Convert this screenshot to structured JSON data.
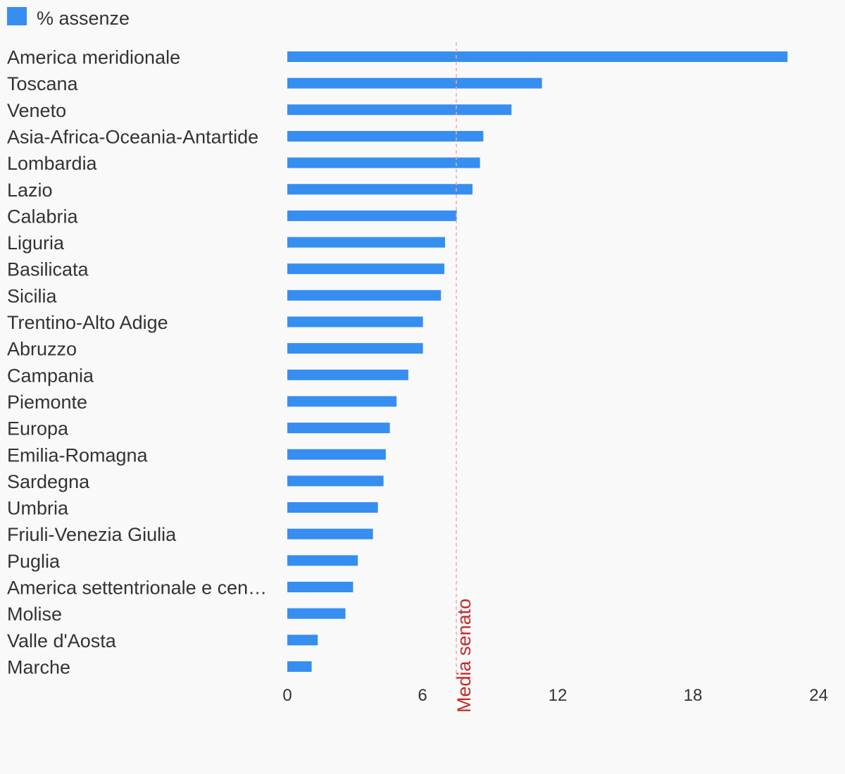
{
  "chart_data": {
    "type": "bar",
    "orientation": "horizontal",
    "legend": {
      "position": "top-left",
      "entries": [
        {
          "name": "% assenze",
          "color": "#368ef0"
        }
      ]
    },
    "categories": [
      "America meridionale",
      "Toscana",
      "Veneto",
      "Asia-Africa-Oceania-Antartide",
      "Lombardia",
      "Lazio",
      "Calabria",
      "Liguria",
      "Basilicata",
      "Sicilia",
      "Trentino-Alto Adige",
      "Abruzzo",
      "Campania",
      "Piemonte",
      "Europa",
      "Emilia-Romagna",
      "Sardegna",
      "Umbria",
      "Friuli-Venezia Giulia",
      "Puglia",
      "America settentrionale e cen…",
      "Molise",
      "Valle d'Aosta",
      "Marche"
    ],
    "series": [
      {
        "name": "% assenze",
        "color": "#368ef0",
        "values": [
          22.2,
          11.3,
          9.95,
          8.7,
          8.55,
          8.22,
          7.52,
          7.0,
          6.97,
          6.82,
          6.02,
          6.02,
          5.37,
          4.85,
          4.55,
          4.37,
          4.27,
          4.02,
          3.8,
          3.13,
          2.92,
          2.58,
          1.35,
          1.08
        ]
      }
    ],
    "xlim": [
      0,
      24
    ],
    "xticks": [
      0,
      6,
      12,
      18,
      24
    ],
    "reference_line": {
      "label": "Media senato",
      "value": 7.5,
      "color": "#c62828"
    },
    "grid": false
  }
}
